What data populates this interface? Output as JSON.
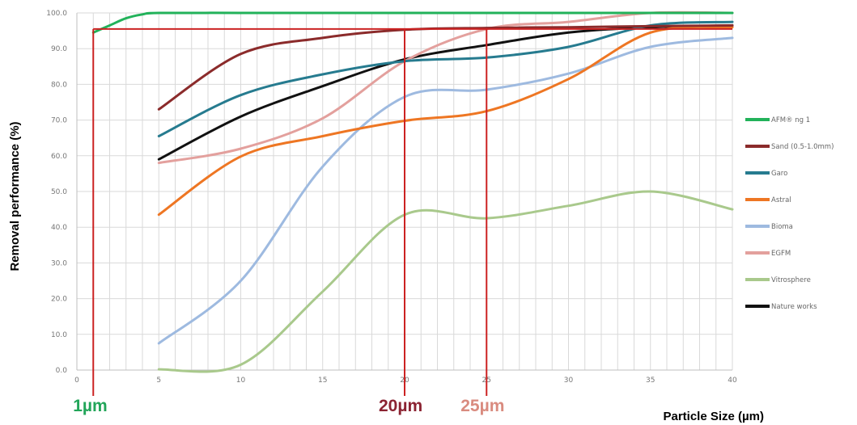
{
  "chart_data": {
    "type": "line",
    "title": "",
    "xlabel": "Particle Size (µm)",
    "ylabel": "Removal performance (%)",
    "xlim": [
      0,
      40
    ],
    "ylim": [
      0,
      100
    ],
    "x_ticks": [
      "0",
      "5",
      "10",
      "15",
      "20",
      "25",
      "30",
      "35",
      "40"
    ],
    "y_ticks": [
      "0.0",
      "10.0",
      "20.0",
      "30.0",
      "40.0",
      "50.0",
      "60.0",
      "70.0",
      "80.0",
      "90.0",
      "100.0"
    ],
    "grid": true,
    "legend_position": "right",
    "series": [
      {
        "name": "AFM® ng 1",
        "color": "#22b25a",
        "x": [
          1,
          2,
          3,
          4,
          5,
          10,
          15,
          20,
          25,
          30,
          35,
          40
        ],
        "y": [
          94.5,
          96.5,
          98.5,
          99.6,
          100,
          100,
          100,
          100,
          100,
          100,
          100,
          100
        ]
      },
      {
        "name": "Sand (0.5-1.0mm)",
        "color": "#8b2b2b",
        "x": [
          5,
          10,
          15,
          20,
          25,
          30,
          35,
          40
        ],
        "y": [
          73,
          88.5,
          93,
          95.3,
          95.8,
          96,
          96.3,
          96.5
        ]
      },
      {
        "name": "Garo",
        "color": "#267b8f",
        "x": [
          5,
          10,
          15,
          20,
          25,
          30,
          35,
          40
        ],
        "y": [
          65.5,
          77,
          82.8,
          86.5,
          87.5,
          90.5,
          96.5,
          97.5
        ]
      },
      {
        "name": "Astral",
        "color": "#ee7623",
        "x": [
          5,
          10,
          15,
          20,
          25,
          30,
          35,
          40
        ],
        "y": [
          43.5,
          59.8,
          65.5,
          69.8,
          72.5,
          81.5,
          94.5,
          96
        ]
      },
      {
        "name": "Bioma",
        "color": "#9ebae0",
        "x": [
          5,
          10,
          15,
          20,
          25,
          30,
          35,
          40
        ],
        "y": [
          7.5,
          25,
          57,
          76.5,
          78.5,
          83,
          90.5,
          93
        ]
      },
      {
        "name": "EGFM",
        "color": "#e3a09d",
        "x": [
          5,
          10,
          15,
          20,
          25,
          30,
          35,
          40
        ],
        "y": [
          58,
          62,
          70.5,
          86.5,
          95.5,
          97.5,
          100,
          100
        ]
      },
      {
        "name": "Vitrosphere",
        "color": "#a9c98c",
        "x": [
          5,
          10,
          15,
          20,
          25,
          30,
          35,
          40
        ],
        "y": [
          0.2,
          1.5,
          22,
          43.5,
          42.5,
          46,
          50,
          45
        ]
      },
      {
        "name": "Nature works",
        "color": "#111111",
        "x": [
          5,
          10,
          15,
          20,
          25,
          30,
          35,
          40
        ],
        "y": [
          59,
          71,
          79.5,
          87,
          91,
          94.5,
          96,
          96.5
        ]
      }
    ],
    "annotations": {
      "h_line_y": 95.5,
      "v_lines": [
        {
          "x": 1,
          "label": "1µm",
          "label_color": "#22a559"
        },
        {
          "x": 20,
          "label": "20µm",
          "label_color": "#8b2332"
        },
        {
          "x": 25,
          "label": "25µm",
          "label_color": "#d98b7f"
        }
      ],
      "line_color": "#cc2222"
    }
  }
}
